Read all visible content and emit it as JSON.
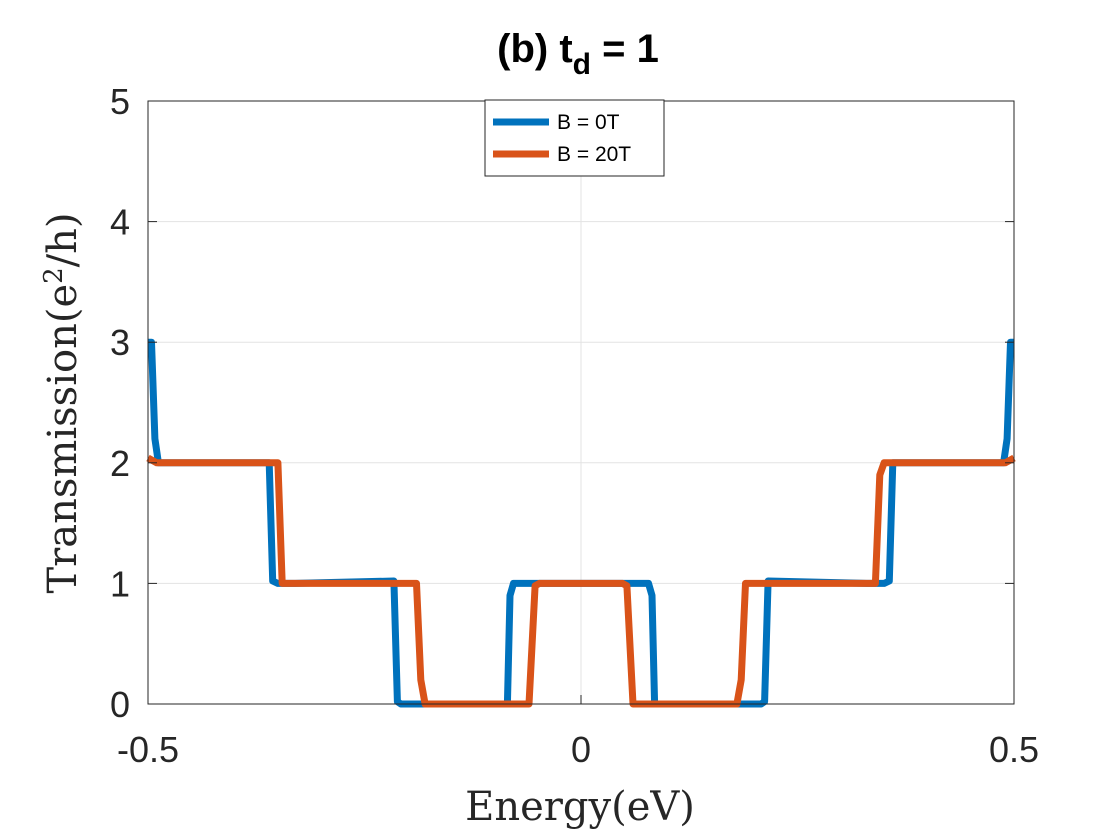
{
  "chart_data": {
    "type": "line",
    "title": {
      "main": "(b) t",
      "subscript": "d",
      "suffix": " = 1"
    },
    "xlabel": "Energy(eV)",
    "ylabel": {
      "main": "Transmission(e",
      "superscript": "2",
      "suffix": "/h)"
    },
    "xlim": [
      -0.5,
      0.5
    ],
    "ylim": [
      0,
      5
    ],
    "xticks": [
      -0.5,
      0,
      0.5
    ],
    "xtick_labels": [
      "-0.5",
      "0",
      "0.5"
    ],
    "yticks": [
      0,
      1,
      2,
      3,
      4,
      5
    ],
    "ytick_labels": [
      "0",
      "1",
      "2",
      "3",
      "4",
      "5"
    ],
    "grid": true,
    "legend_position": "top-center",
    "series": [
      {
        "name": "B = 0T",
        "color": "#0072BD",
        "x": [
          -0.5,
          -0.496,
          -0.492,
          -0.488,
          -0.47,
          -0.36,
          -0.356,
          -0.35,
          -0.33,
          -0.216,
          -0.212,
          -0.208,
          -0.19,
          -0.085,
          -0.082,
          -0.078,
          -0.06,
          0.06,
          0.078,
          0.082,
          0.085,
          0.19,
          0.208,
          0.212,
          0.216,
          0.33,
          0.35,
          0.356,
          0.36,
          0.47,
          0.488,
          0.492,
          0.496,
          0.5
        ],
        "values": [
          3.0,
          3.0,
          2.2,
          2.0,
          2.0,
          2.0,
          1.02,
          1.0,
          1.0,
          1.02,
          0.02,
          0.0,
          0.0,
          0.0,
          0.9,
          1.0,
          1.0,
          1.0,
          1.0,
          0.9,
          0.0,
          0.0,
          0.0,
          0.02,
          1.02,
          1.0,
          1.0,
          1.02,
          2.0,
          2.0,
          2.0,
          2.2,
          3.0,
          3.0
        ]
      },
      {
        "name": "B = 20T",
        "color": "#D95319",
        "x": [
          -0.5,
          -0.49,
          -0.35,
          -0.345,
          -0.34,
          -0.19,
          -0.185,
          -0.18,
          -0.06,
          -0.053,
          -0.048,
          0.048,
          0.053,
          0.06,
          0.18,
          0.185,
          0.19,
          0.34,
          0.345,
          0.35,
          0.49,
          0.5
        ],
        "values": [
          2.04,
          2.0,
          2.0,
          1.0,
          1.0,
          1.0,
          0.2,
          0.0,
          0.0,
          0.98,
          1.0,
          1.0,
          0.98,
          0.0,
          0.0,
          0.2,
          1.0,
          1.0,
          1.9,
          2.0,
          2.0,
          2.04
        ]
      }
    ]
  }
}
